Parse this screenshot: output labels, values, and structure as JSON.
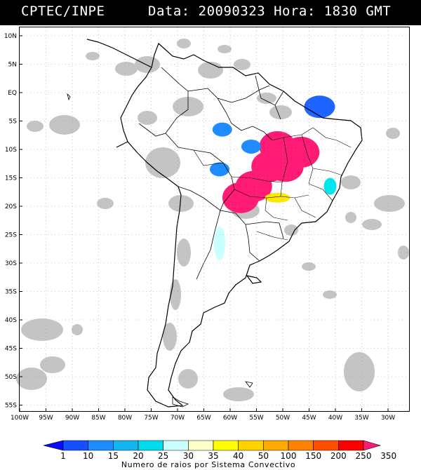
{
  "header": {
    "left": "CPTEC/INPE",
    "right": "Data: 20090323 Hora: 1830 GMT"
  },
  "map": {
    "lat_labels": [
      "10N",
      "5N",
      "EQ",
      "5S",
      "10S",
      "15S",
      "20S",
      "25S",
      "30S",
      "35S",
      "40S",
      "45S",
      "50S",
      "55S"
    ],
    "lon_labels": [
      "100W",
      "95W",
      "90W",
      "85W",
      "80W",
      "75W",
      "70W",
      "65W",
      "60W",
      "55W",
      "50W",
      "45W",
      "40W",
      "35W",
      "30W"
    ],
    "lat_values": [
      10,
      5,
      0,
      -5,
      -10,
      -15,
      -20,
      -25,
      -30,
      -35,
      -40,
      -45,
      -50,
      -55
    ],
    "lon_values": [
      -100,
      -95,
      -90,
      -85,
      -80,
      -75,
      -70,
      -65,
      -60,
      -55,
      -50,
      -45,
      -40,
      -35,
      -30
    ],
    "colors": {
      "land_outline": "#000000",
      "grid": "#888888",
      "cloud": "#c0c0c0"
    },
    "storm_cells": [
      {
        "class": 11,
        "color": "#ff1a75",
        "lon": -52.5,
        "lat": -13.0
      },
      {
        "class": 11,
        "color": "#ff1a75",
        "lon": -49.5,
        "lat": -13.0
      },
      {
        "class": 11,
        "color": "#ff1a75",
        "lon": -55.5,
        "lat": -16.5
      },
      {
        "class": 11,
        "color": "#ff1a75",
        "lon": -58.0,
        "lat": -18.5
      },
      {
        "class": 11,
        "color": "#ff1a75",
        "lon": -46.5,
        "lat": -10.5
      },
      {
        "class": 11,
        "color": "#ff1a75",
        "lon": -51.0,
        "lat": -9.5
      },
      {
        "class": 2,
        "color": "#1e64ff",
        "lon": -43.0,
        "lat": -2.5
      },
      {
        "class": 3,
        "color": "#1e8cff",
        "lon": -61.5,
        "lat": -6.5
      },
      {
        "class": 3,
        "color": "#1e8cff",
        "lon": -56.0,
        "lat": -9.5
      },
      {
        "class": 3,
        "color": "#1e8cff",
        "lon": -62.0,
        "lat": -13.5
      },
      {
        "class": 7,
        "color": "#ffe800",
        "lon": -51.0,
        "lat": -18.5
      },
      {
        "class": 5,
        "color": "#00e6ee",
        "lon": -41.0,
        "lat": -16.5
      },
      {
        "class": 6,
        "color": "#c8ffff",
        "lon": -62.0,
        "lat": -26.5
      }
    ]
  },
  "legend": {
    "values": [
      "1",
      "10",
      "15",
      "20",
      "25",
      "30",
      "35",
      "40",
      "50",
      "100",
      "150",
      "200",
      "250",
      "350"
    ],
    "colors": [
      "#0a0aff",
      "#1450ff",
      "#1e8cff",
      "#14b4f0",
      "#00dcee",
      "#c8ffff",
      "#ffffc8",
      "#ffff00",
      "#ffd200",
      "#ffaa00",
      "#ff8200",
      "#ff5000",
      "#ff0000",
      "#ff1a75"
    ],
    "title": "Numero de raios por Sistema Convectivo"
  }
}
